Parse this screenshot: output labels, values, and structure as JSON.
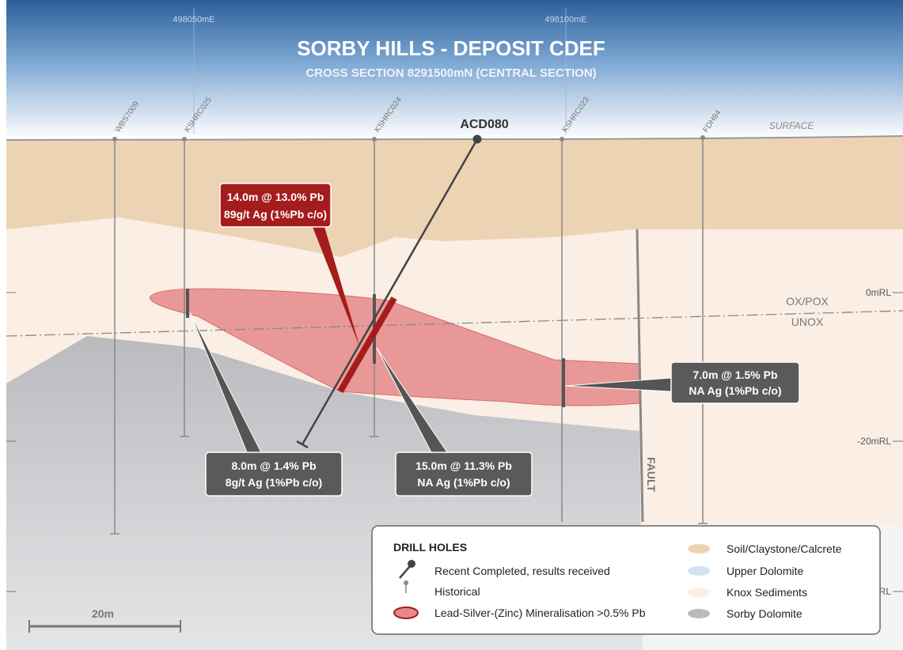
{
  "header": {
    "title": "SORBY HILLS - DEPOSIT CDEF",
    "subtitle": "CROSS SECTION 8291500mN (CENTRAL SECTION)"
  },
  "eastings": [
    "498050mE",
    "498100mE"
  ],
  "surface_label": "SURFACE",
  "rl_labels": [
    "0mRL",
    "-20mRL",
    "RL"
  ],
  "drill_holes": [
    "WBS7009",
    "KSHRC025",
    "KSHRC024",
    "ACD080",
    "KSHRC023",
    "FDH84"
  ],
  "zone_labels": [
    "OX/POX",
    "UNOX",
    "FAULT"
  ],
  "intercepts": [
    {
      "lines": [
        "14.0m @ 13.0% Pb",
        "89g/t Ag (1%Pb c/o)"
      ]
    },
    {
      "lines": [
        "8.0m @ 1.4% Pb",
        "8g/t Ag (1%Pb c/o)"
      ]
    },
    {
      "lines": [
        "15.0m @ 11.3% Pb",
        "NA Ag (1%Pb c/o)"
      ]
    },
    {
      "lines": [
        "7.0m @ 1.5% Pb",
        "NA Ag (1%Pb c/o)"
      ]
    }
  ],
  "legend": {
    "title": "DRILL HOLES",
    "items": [
      "Recent Completed, results received",
      "Historical",
      "Lead-Silver-(Zinc) Mineralisation >0.5% Pb"
    ],
    "units": [
      "Soil/Claystone/Calcrete",
      "Upper Dolomite",
      "Knox Sediments",
      "Sorby Dolomite"
    ]
  },
  "scale_bar": "20m"
}
